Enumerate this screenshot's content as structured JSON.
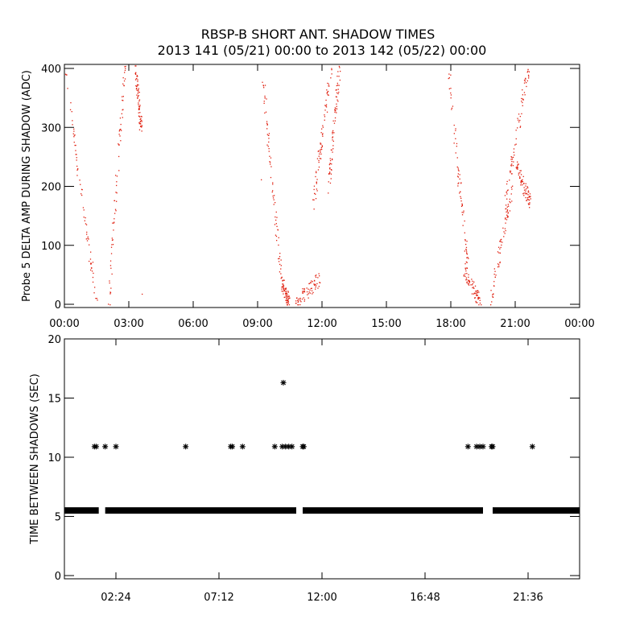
{
  "figure": {
    "title_line1": "RBSP-B SHORT ANT. SHADOW TIMES",
    "title_line2": "2013 141 (05/21) 00:00 to 2013 142 (05/22) 00:00"
  },
  "colors": {
    "points": "#e02010",
    "stars": "#000000",
    "axes": "#000000"
  },
  "chart_data": [
    {
      "type": "scatter",
      "name": "delta-amp",
      "ylabel": "Probe 5 DELTA AMP DURING SHADOW (ADC)",
      "xlabel": "",
      "xlim_hours": [
        0,
        24
      ],
      "ylim": [
        0,
        410
      ],
      "x_tick_labels": [
        "00:00",
        "03:00",
        "06:00",
        "09:00",
        "12:00",
        "15:00",
        "18:00",
        "21:00",
        "00:00"
      ],
      "y_tick_labels": [
        "0",
        "100",
        "200",
        "300",
        "400"
      ],
      "y_tick_values": [
        0,
        100,
        200,
        300,
        400
      ],
      "segments": [
        {
          "x_start": 0.05,
          "x_end": 1.5,
          "y_start": 400,
          "y_end": 2
        },
        {
          "x_start": 2.05,
          "x_end": 2.8,
          "y_start": 2,
          "y_end": 400
        },
        {
          "x_start": 3.3,
          "x_end": 3.55,
          "y_start": 400,
          "y_end": 300
        },
        {
          "x_start": 9.25,
          "x_end": 10.1,
          "y_start": 390,
          "y_end": 40
        },
        {
          "x_start": 10.1,
          "x_end": 10.45,
          "y_start": 40,
          "y_end": 2
        },
        {
          "x_start": 10.8,
          "x_end": 11.9,
          "y_start": 2,
          "y_end": 45
        },
        {
          "x_start": 11.55,
          "x_end": 12.4,
          "y_start": 150,
          "y_end": 400
        },
        {
          "x_start": 12.3,
          "x_end": 12.8,
          "y_start": 200,
          "y_end": 400
        },
        {
          "x_start": 17.9,
          "x_end": 18.8,
          "y_start": 400,
          "y_end": 60
        },
        {
          "x_start": 18.6,
          "x_end": 19.4,
          "y_start": 60,
          "y_end": 2
        },
        {
          "x_start": 19.85,
          "x_end": 20.85,
          "y_start": 2,
          "y_end": 200
        },
        {
          "x_start": 20.5,
          "x_end": 21.6,
          "y_start": 160,
          "y_end": 400
        },
        {
          "x_start": 21.0,
          "x_end": 21.7,
          "y_start": 240,
          "y_end": 170
        }
      ],
      "isolated_points": [
        {
          "x": 3.6,
          "y": 18
        },
        {
          "x": 9.15,
          "y": 212
        },
        {
          "x": 11.8,
          "y": 260
        }
      ]
    },
    {
      "type": "scatter",
      "name": "time-between-shadows",
      "ylabel": "TIME BETWEEN SHADOWS (SEC)",
      "xlabel": "",
      "xlim_hours": [
        0,
        24
      ],
      "ylim": [
        0,
        20
      ],
      "x_tick_labels": [
        "02:24",
        "07:12",
        "12:00",
        "16:48",
        "21:36"
      ],
      "x_tick_hours": [
        2.4,
        7.2,
        12.0,
        16.8,
        21.6
      ],
      "y_tick_labels": [
        "0",
        "5",
        "10",
        "15",
        "20"
      ],
      "y_tick_values": [
        0,
        5,
        10,
        15,
        20
      ],
      "baseline_value": 5.5,
      "baseline_ranges": [
        [
          0.0,
          1.6
        ],
        [
          1.9,
          10.8
        ],
        [
          11.1,
          19.5
        ],
        [
          19.95,
          24.0
        ]
      ],
      "high_points": [
        {
          "x": 1.4,
          "y": 10.9
        },
        {
          "x": 1.48,
          "y": 10.9
        },
        {
          "x": 1.9,
          "y": 10.9
        },
        {
          "x": 2.4,
          "y": 10.9
        },
        {
          "x": 5.65,
          "y": 10.9
        },
        {
          "x": 7.75,
          "y": 10.9
        },
        {
          "x": 7.82,
          "y": 10.9
        },
        {
          "x": 8.3,
          "y": 10.9
        },
        {
          "x": 9.8,
          "y": 10.9
        },
        {
          "x": 10.2,
          "y": 16.3
        },
        {
          "x": 10.15,
          "y": 10.9
        },
        {
          "x": 10.3,
          "y": 10.9
        },
        {
          "x": 10.45,
          "y": 10.9
        },
        {
          "x": 10.6,
          "y": 10.9
        },
        {
          "x": 11.1,
          "y": 10.9
        },
        {
          "x": 11.15,
          "y": 10.9
        },
        {
          "x": 18.8,
          "y": 10.9
        },
        {
          "x": 19.2,
          "y": 10.9
        },
        {
          "x": 19.35,
          "y": 10.9
        },
        {
          "x": 19.5,
          "y": 10.9
        },
        {
          "x": 19.9,
          "y": 10.9
        },
        {
          "x": 19.95,
          "y": 10.9
        },
        {
          "x": 21.8,
          "y": 10.9
        }
      ]
    }
  ]
}
